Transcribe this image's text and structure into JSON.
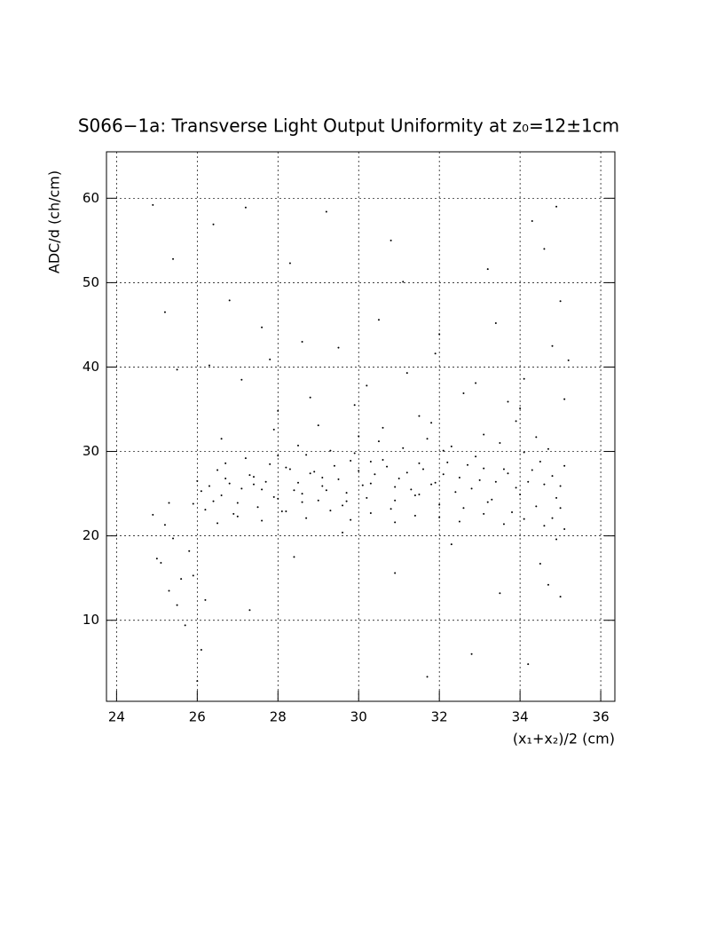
{
  "chart_data": {
    "type": "scatter",
    "title": "S066−1a: Transverse Light Output Uniformity at z₀=12±1cm",
    "x_label": "(x₁+x₂)/2 (cm)",
    "y_label": "ADC/d (ch/cm)",
    "xlim": [
      23.75,
      36.35
    ],
    "ylim": [
      0.4,
      65.5
    ],
    "xticks": [
      24,
      26,
      28,
      30,
      32,
      34,
      36
    ],
    "yticks": [
      10,
      20,
      30,
      40,
      50,
      60
    ],
    "grid": true,
    "color": "#000000",
    "x": [
      26.1,
      26.4,
      26.7,
      27.0,
      27.3,
      27.6,
      27.9,
      28.2,
      28.5,
      28.8,
      29.1,
      29.4,
      29.7,
      30.0,
      30.3,
      30.6,
      30.9,
      31.2,
      31.5,
      31.8,
      32.1,
      32.4,
      32.7,
      33.0,
      33.3,
      33.6,
      33.9,
      34.2,
      34.5,
      34.8,
      26.2,
      26.5,
      26.9,
      27.2,
      27.5,
      27.8,
      28.1,
      28.4,
      28.7,
      29.0,
      29.3,
      29.6,
      29.9,
      30.2,
      30.5,
      30.8,
      31.1,
      31.4,
      31.7,
      32.0,
      32.3,
      32.6,
      32.9,
      33.2,
      33.5,
      33.8,
      34.1,
      34.4,
      34.7,
      35.0,
      26.0,
      26.3,
      26.6,
      26.8,
      27.1,
      27.4,
      27.7,
      28.0,
      28.3,
      28.6,
      28.9,
      29.2,
      29.5,
      29.8,
      30.1,
      30.4,
      30.7,
      31.0,
      31.3,
      31.6,
      31.9,
      32.2,
      32.5,
      32.8,
      33.1,
      33.4,
      33.7,
      34.0,
      34.3,
      34.6,
      35.1,
      34.9,
      25.9,
      26.6,
      27.9,
      29.0,
      30.6,
      31.8,
      33.1,
      34.4,
      25.2,
      26.3,
      27.1,
      27.6,
      28.8,
      29.5,
      30.2,
      31.1,
      31.9,
      32.6,
      33.4,
      34.1,
      34.6,
      35.0,
      34.8,
      35.1,
      25.5,
      26.8,
      28.3,
      29.9,
      30.8,
      32.0,
      33.2,
      34.3,
      35.2,
      27.2,
      28.0,
      31.5,
      33.7,
      34.9,
      29.2,
      30.5,
      32.9,
      26.4,
      27.8,
      24.9,
      25.4,
      34.0,
      31.2,
      28.6,
      25.1,
      25.3,
      25.4,
      25.6,
      25.2,
      25.5,
      25.8,
      25.7,
      25.3,
      25.9,
      26.1,
      26.2,
      24.9,
      25.0,
      34.7,
      34.9,
      35.0,
      34.5,
      34.8,
      35.1,
      27.3,
      28.4,
      29.6,
      30.9,
      31.7,
      32.3,
      33.5,
      34.2,
      26.0,
      32.8,
      26.5,
      27.0,
      27.6,
      28.2,
      28.7,
      29.3,
      29.8,
      30.3,
      30.9,
      31.4,
      32.0,
      32.5,
      33.1,
      33.6,
      34.1,
      34.6,
      35.0,
      30.0,
      28.5,
      33.9,
      26.7,
      27.4,
      28.0,
      28.6,
      29.1,
      29.7,
      30.3,
      30.9,
      31.5,
      32.1
    ],
    "y": [
      25.3,
      24.1,
      26.8,
      23.9,
      27.2,
      25.5,
      24.6,
      28.1,
      26.3,
      27.4,
      26.9,
      28.3,
      25.1,
      27.7,
      26.2,
      29.0,
      25.8,
      27.5,
      28.6,
      26.1,
      27.3,
      25.2,
      28.4,
      26.6,
      24.3,
      27.9,
      25.7,
      26.4,
      28.8,
      27.1,
      23.1,
      27.8,
      22.6,
      29.2,
      23.4,
      28.5,
      22.9,
      25.4,
      29.6,
      24.2,
      30.1,
      23.6,
      29.8,
      24.5,
      31.2,
      23.2,
      30.4,
      24.8,
      31.5,
      23.7,
      30.6,
      23.3,
      29.4,
      24.0,
      31.0,
      22.8,
      29.9,
      23.5,
      30.3,
      25.9,
      26.5,
      25.9,
      24.8,
      26.2,
      25.6,
      27.0,
      26.4,
      24.4,
      27.9,
      25.0,
      27.6,
      25.4,
      26.7,
      28.9,
      26.0,
      27.3,
      28.2,
      26.8,
      25.5,
      27.9,
      26.3,
      28.7,
      26.9,
      25.6,
      28.0,
      26.4,
      27.4,
      24.9,
      27.8,
      26.1,
      28.3,
      24.5,
      23.8,
      31.5,
      32.6,
      33.1,
      32.8,
      33.4,
      32.0,
      31.7,
      46.5,
      40.2,
      38.5,
      44.7,
      36.4,
      42.3,
      37.8,
      50.1,
      41.6,
      36.9,
      45.2,
      38.6,
      54.0,
      47.8,
      42.5,
      36.2,
      39.7,
      47.9,
      52.3,
      35.5,
      55.0,
      43.9,
      51.6,
      57.3,
      40.8,
      58.9,
      34.8,
      34.2,
      35.9,
      59.0,
      58.4,
      45.6,
      38.1,
      56.9,
      40.9,
      59.2,
      52.8,
      35.1,
      39.3,
      43.0,
      16.8,
      13.5,
      19.7,
      14.9,
      21.3,
      11.8,
      18.2,
      9.4,
      23.9,
      15.3,
      6.5,
      12.4,
      22.5,
      17.3,
      14.2,
      19.6,
      12.8,
      16.7,
      22.1,
      20.8,
      11.2,
      17.5,
      20.4,
      15.6,
      3.3,
      19.0,
      13.2,
      4.8,
      2.8,
      6.0,
      21.5,
      22.3,
      21.8,
      22.9,
      22.1,
      23.0,
      21.9,
      22.7,
      21.6,
      22.4,
      22.2,
      21.7,
      22.6,
      21.4,
      22.0,
      21.2,
      23.3,
      31.8,
      30.7,
      33.6,
      28.6,
      26.1,
      29.5,
      24.0,
      25.9,
      24.1,
      28.8,
      24.2,
      24.9,
      30.1
    ]
  }
}
